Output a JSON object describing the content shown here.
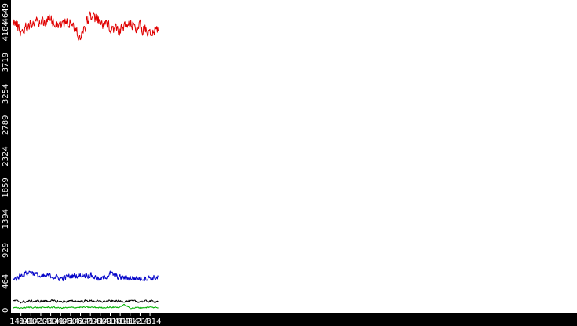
{
  "chart_data": {
    "type": "line",
    "title": "",
    "xlabel": "",
    "ylabel": "",
    "x_ticks": [
      "14:01",
      "14:02",
      "14:03",
      "14:04",
      "14:05",
      "14:06",
      "14:07",
      "14:08",
      "14:09",
      "14:10",
      "14:11",
      "14:12",
      "14:13",
      "14:14"
    ],
    "y_ticks": [
      "0",
      "464",
      "929",
      "1394",
      "1859",
      "2324",
      "2789",
      "3254",
      "3719",
      "4184",
      "4649"
    ],
    "ylim": [
      0,
      4649
    ],
    "xlim_minutes": [
      14.0,
      14.95
    ],
    "grid": false,
    "legend": "none",
    "colors": {
      "axis_bar": "#000000",
      "axis_text": "#ffffff",
      "background": "#ffffff"
    },
    "series": [
      {
        "color": "#e00000",
        "x": [
          "14:00:15",
          "14:01:00",
          "14:02:00",
          "14:03:00",
          "14:04:00",
          "14:05:00",
          "14:06:00",
          "14:07:00",
          "14:07:30",
          "14:08:00",
          "14:09:00",
          "14:10:00",
          "14:11:00",
          "14:12:00",
          "14:13:00",
          "14:14:00",
          "14:14:50"
        ],
        "values": [
          4350,
          4180,
          4300,
          4330,
          4350,
          4290,
          4310,
          4090,
          4250,
          4440,
          4300,
          4250,
          4200,
          4280,
          4250,
          4120,
          4230
        ],
        "noise": 240
      },
      {
        "color": "#0000c8",
        "x": [
          "14:00:15",
          "14:01:00",
          "14:02:00",
          "14:03:00",
          "14:04:00",
          "14:05:00",
          "14:06:00",
          "14:07:00",
          "14:08:00",
          "14:09:00",
          "14:10:00",
          "14:11:00",
          "14:12:00",
          "14:13:00",
          "14:14:00",
          "14:14:50"
        ],
        "values": [
          480,
          560,
          610,
          530,
          550,
          510,
          540,
          560,
          560,
          490,
          580,
          520,
          520,
          510,
          520,
          520
        ],
        "noise": 120
      },
      {
        "color": "#000000",
        "x": [
          "14:00:15",
          "14:01:00",
          "14:02:00",
          "14:03:00",
          "14:04:00",
          "14:05:00",
          "14:06:00",
          "14:07:00",
          "14:08:00",
          "14:09:00",
          "14:10:00",
          "14:11:00",
          "14:12:00",
          "14:13:00",
          "14:14:00",
          "14:14:50"
        ],
        "values": [
          180,
          160,
          170,
          170,
          175,
          165,
          170,
          170,
          175,
          165,
          170,
          170,
          170,
          165,
          170,
          170
        ],
        "noise": 50
      },
      {
        "color": "#00b000",
        "x": [
          "14:00:15",
          "14:01:00",
          "14:02:00",
          "14:03:00",
          "14:04:00",
          "14:05:00",
          "14:06:00",
          "14:07:00",
          "14:08:00",
          "14:09:00",
          "14:10:00",
          "14:11:00",
          "14:11:20",
          "14:12:00",
          "14:13:00",
          "14:14:00",
          "14:14:50"
        ],
        "values": [
          70,
          70,
          80,
          75,
          80,
          70,
          75,
          80,
          80,
          75,
          80,
          80,
          120,
          70,
          75,
          80,
          75
        ],
        "noise": 30
      }
    ]
  }
}
